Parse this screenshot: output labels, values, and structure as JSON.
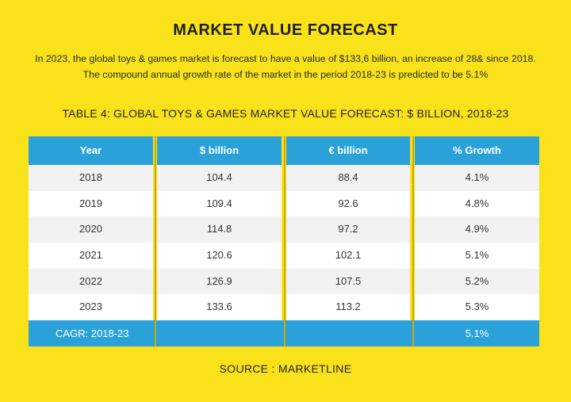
{
  "title": "MARKET VALUE FORECAST",
  "intro": {
    "line1": "In 2023, the global toys & games market is forecast to have a value of $133,6 billion, an increase of 28& since 2018.",
    "line2": "The compound annual growth rate of the market in the period 2018-23 is predicted to be 5.1%"
  },
  "table_title": "TABLE 4: GLOBAL TOYS & GAMES MARKET VALUE FORECAST: $ BILLION, 2018-23",
  "table": {
    "headers": [
      "Year",
      "$ billion",
      "€ billion",
      "% Growth"
    ],
    "rows": [
      [
        "2018",
        "104.4",
        "88.4",
        "4.1%"
      ],
      [
        "2019",
        "109.4",
        "92.6",
        "4.8%"
      ],
      [
        "2020",
        "114.8",
        "97.2",
        "4.9%"
      ],
      [
        "2021",
        "120.6",
        "102.1",
        "5.1%"
      ],
      [
        "2022",
        "126.9",
        "107.5",
        "5.2%"
      ],
      [
        "2023",
        "133.6",
        "113.2",
        "5.3%"
      ]
    ],
    "cagr_label": "CAGR: 2018-23",
    "cagr_value": "5.1%"
  },
  "source": "SOURCE : MARKETLINE",
  "colors": {
    "background": "#f9e21a",
    "header": "#2aa2d9",
    "separator": "#c9a70e"
  }
}
